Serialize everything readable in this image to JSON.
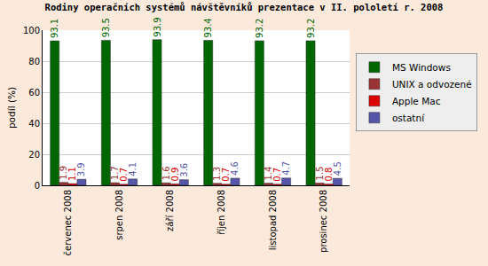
{
  "chart_data": {
    "type": "bar",
    "title": "Rodiny operačních systémů návštěvníků prezentace v II. pololetí r. 2008",
    "y_label": "podíl (%)",
    "categories": [
      "červenec 2008",
      "srpen 2008",
      "září 2008",
      "říjen 2008",
      "listopad 2008",
      "prosinec 2008"
    ],
    "series": [
      {
        "name": "MS Windows",
        "color": "#006600",
        "values": [
          93.1,
          93.5,
          93.9,
          93.4,
          93.2,
          93.2
        ]
      },
      {
        "name": "UNIX a odvozené",
        "color": "#993333",
        "values": [
          1.9,
          1.7,
          1.6,
          1.3,
          1.4,
          1.5
        ]
      },
      {
        "name": "Apple Mac",
        "color": "#dd0000",
        "values": [
          1.1,
          0.7,
          0.9,
          0.7,
          0.7,
          0.8
        ]
      },
      {
        "name": "ostatní",
        "color": "#5555aa",
        "values": [
          3.9,
          4.1,
          3.6,
          4.6,
          4.7,
          4.5
        ]
      }
    ],
    "ylim": [
      0,
      100
    ],
    "yticks": [
      0,
      20,
      40,
      60,
      80,
      100
    ],
    "grid": true,
    "legend": "right",
    "data_labels": true
  }
}
